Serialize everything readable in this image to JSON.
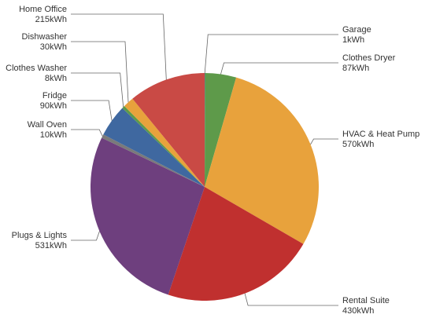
{
  "chart_data": {
    "type": "pie",
    "categories": [
      "Garage",
      "Clothes Dryer",
      "HVAC & Heat Pump",
      "Rental Suite",
      "Plugs & Lights",
      "Wall Oven",
      "Fridge",
      "Clothes Washer",
      "Dishwasher",
      "Home Office"
    ],
    "values": [
      1,
      87,
      570,
      430,
      531,
      10,
      90,
      8,
      30,
      215
    ],
    "value_labels": [
      "1kWh",
      "87kWh",
      "570kWh",
      "430kWh",
      "531kWh",
      "10kWh",
      "90kWh",
      "8kWh",
      "30kWh",
      "215kWh"
    ],
    "colors": [
      "#3f6ea0",
      "#5e9a4a",
      "#e8a23c",
      "#c0302f",
      "#6e3f7e",
      "#7a7a7a",
      "#3f68a0",
      "#5e9a4a",
      "#e8a23c",
      "#c94a45"
    ]
  }
}
